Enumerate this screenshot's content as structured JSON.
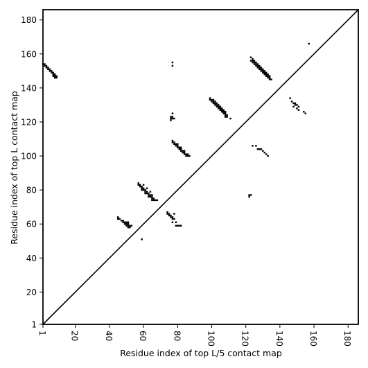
{
  "chart_data": {
    "type": "scatter",
    "title": "",
    "xlabel": "Residue index of top L/5 contact map",
    "ylabel": "Residue index of top L contact map",
    "xlim": [
      1,
      186
    ],
    "ylim": [
      1,
      186
    ],
    "x_ticks": [
      {
        "value": 1,
        "label": "1"
      },
      {
        "value": 20,
        "label": "20"
      },
      {
        "value": 40,
        "label": "40"
      },
      {
        "value": 60,
        "label": "60"
      },
      {
        "value": 80,
        "label": "80"
      },
      {
        "value": 100,
        "label": "100"
      },
      {
        "value": 120,
        "label": "120"
      },
      {
        "value": 140,
        "label": "140"
      },
      {
        "value": 160,
        "label": "160"
      },
      {
        "value": 180,
        "label": "180"
      }
    ],
    "y_ticks": [
      {
        "value": 1,
        "label": "1"
      },
      {
        "value": 20,
        "label": "20"
      },
      {
        "value": 40,
        "label": "40"
      },
      {
        "value": 60,
        "label": "60"
      },
      {
        "value": 80,
        "label": "80"
      },
      {
        "value": 100,
        "label": "100"
      },
      {
        "value": 120,
        "label": "120"
      },
      {
        "value": 140,
        "label": "140"
      },
      {
        "value": 160,
        "label": "160"
      },
      {
        "value": 180,
        "label": "180"
      }
    ],
    "diagonal": [
      [
        1,
        1
      ],
      [
        186,
        186
      ]
    ],
    "marker_color": "#000000",
    "grid": false,
    "series": [
      {
        "points": [
          [
            1,
            154
          ],
          [
            2,
            154
          ],
          [
            2,
            153
          ],
          [
            3,
            153
          ],
          [
            3,
            152
          ],
          [
            4,
            152
          ],
          [
            4,
            151
          ],
          [
            5,
            151
          ],
          [
            5,
            150
          ],
          [
            6,
            150
          ],
          [
            6,
            149
          ],
          [
            7,
            149
          ],
          [
            7,
            148
          ],
          [
            8,
            148
          ],
          [
            8,
            147
          ],
          [
            9,
            147
          ],
          [
            9,
            146
          ],
          [
            7,
            147
          ],
          [
            8,
            146
          ],
          [
            77,
            155
          ],
          [
            77,
            153
          ],
          [
            77,
            125
          ],
          [
            76,
            123
          ],
          [
            77,
            123
          ],
          [
            76,
            122
          ],
          [
            77,
            122
          ],
          [
            78,
            122
          ],
          [
            76,
            121
          ],
          [
            45,
            64
          ],
          [
            45,
            63
          ],
          [
            46,
            63
          ],
          [
            47,
            62
          ],
          [
            48,
            62
          ],
          [
            48,
            61
          ],
          [
            49,
            61
          ],
          [
            49,
            60
          ],
          [
            50,
            60
          ],
          [
            50,
            59
          ],
          [
            51,
            59
          ],
          [
            51,
            58
          ],
          [
            52,
            58
          ],
          [
            52,
            59
          ],
          [
            53,
            59
          ],
          [
            51,
            60
          ],
          [
            51,
            61
          ],
          [
            50,
            61
          ],
          [
            59,
            51
          ],
          [
            57,
            84
          ],
          [
            57,
            83
          ],
          [
            58,
            83
          ],
          [
            58,
            82
          ],
          [
            59,
            82
          ],
          [
            59,
            81
          ],
          [
            60,
            81
          ],
          [
            60,
            80
          ],
          [
            61,
            80
          ],
          [
            61,
            79
          ],
          [
            62,
            79
          ],
          [
            62,
            78
          ],
          [
            63,
            78
          ],
          [
            63,
            77
          ],
          [
            64,
            77
          ],
          [
            64,
            76
          ],
          [
            65,
            76
          ],
          [
            65,
            75
          ],
          [
            66,
            75
          ],
          [
            66,
            74
          ],
          [
            67,
            74
          ],
          [
            68,
            74
          ],
          [
            60,
            83
          ],
          [
            62,
            81
          ],
          [
            64,
            79
          ],
          [
            65,
            77
          ],
          [
            59,
            80
          ],
          [
            61,
            78
          ],
          [
            63,
            76
          ],
          [
            65,
            74
          ],
          [
            74,
            67
          ],
          [
            74,
            66
          ],
          [
            75,
            66
          ],
          [
            75,
            65
          ],
          [
            76,
            65
          ],
          [
            76,
            64
          ],
          [
            77,
            64
          ],
          [
            77,
            63
          ],
          [
            78,
            63
          ],
          [
            78,
            66
          ],
          [
            79,
            61
          ],
          [
            80,
            59
          ],
          [
            81,
            59
          ],
          [
            82,
            59
          ],
          [
            79,
            59
          ],
          [
            77,
            61
          ],
          [
            77,
            109
          ],
          [
            77,
            108
          ],
          [
            78,
            108
          ],
          [
            78,
            107
          ],
          [
            79,
            107
          ],
          [
            79,
            106
          ],
          [
            80,
            106
          ],
          [
            80,
            105
          ],
          [
            81,
            105
          ],
          [
            81,
            104
          ],
          [
            82,
            104
          ],
          [
            82,
            103
          ],
          [
            83,
            103
          ],
          [
            83,
            102
          ],
          [
            84,
            102
          ],
          [
            84,
            101
          ],
          [
            85,
            101
          ],
          [
            85,
            100
          ],
          [
            86,
            100
          ],
          [
            87,
            100
          ],
          [
            80,
            107
          ],
          [
            82,
            105
          ],
          [
            84,
            103
          ],
          [
            86,
            101
          ],
          [
            99,
            134
          ],
          [
            99,
            133
          ],
          [
            100,
            133
          ],
          [
            100,
            132
          ],
          [
            101,
            132
          ],
          [
            101,
            131
          ],
          [
            102,
            131
          ],
          [
            102,
            130
          ],
          [
            103,
            130
          ],
          [
            103,
            129
          ],
          [
            104,
            129
          ],
          [
            104,
            128
          ],
          [
            105,
            128
          ],
          [
            105,
            127
          ],
          [
            106,
            127
          ],
          [
            106,
            126
          ],
          [
            107,
            126
          ],
          [
            107,
            125
          ],
          [
            108,
            125
          ],
          [
            108,
            124
          ],
          [
            109,
            124
          ],
          [
            109,
            123
          ],
          [
            108,
            123
          ],
          [
            101,
            133
          ],
          [
            103,
            131
          ],
          [
            105,
            129
          ],
          [
            107,
            127
          ],
          [
            102,
            132
          ],
          [
            104,
            130
          ],
          [
            106,
            128
          ],
          [
            108,
            126
          ],
          [
            111,
            122
          ],
          [
            123,
            158
          ],
          [
            123,
            156
          ],
          [
            124,
            156
          ],
          [
            124,
            155
          ],
          [
            125,
            155
          ],
          [
            125,
            154
          ],
          [
            126,
            154
          ],
          [
            126,
            153
          ],
          [
            127,
            153
          ],
          [
            127,
            152
          ],
          [
            128,
            152
          ],
          [
            128,
            151
          ],
          [
            129,
            151
          ],
          [
            129,
            150
          ],
          [
            130,
            150
          ],
          [
            130,
            149
          ],
          [
            131,
            149
          ],
          [
            131,
            148
          ],
          [
            132,
            148
          ],
          [
            132,
            147
          ],
          [
            133,
            147
          ],
          [
            133,
            146
          ],
          [
            134,
            146
          ],
          [
            134,
            145
          ],
          [
            135,
            145
          ],
          [
            124,
            157
          ],
          [
            126,
            155
          ],
          [
            128,
            153
          ],
          [
            130,
            151
          ],
          [
            132,
            149
          ],
          [
            134,
            147
          ],
          [
            125,
            156
          ],
          [
            127,
            154
          ],
          [
            129,
            152
          ],
          [
            131,
            150
          ],
          [
            133,
            148
          ],
          [
            124,
            106
          ],
          [
            126,
            106
          ],
          [
            127,
            104
          ],
          [
            128,
            104
          ],
          [
            129,
            104
          ],
          [
            130,
            103
          ],
          [
            131,
            102
          ],
          [
            132,
            101
          ],
          [
            133,
            100
          ],
          [
            122,
            77
          ],
          [
            123,
            77
          ],
          [
            122,
            76
          ],
          [
            146,
            134
          ],
          [
            147,
            132
          ],
          [
            148,
            131
          ],
          [
            149,
            131
          ],
          [
            149,
            130
          ],
          [
            150,
            130
          ],
          [
            151,
            129
          ],
          [
            148,
            129
          ],
          [
            150,
            128
          ],
          [
            151,
            127
          ],
          [
            154,
            126
          ],
          [
            155,
            125
          ],
          [
            157,
            166
          ]
        ]
      }
    ]
  }
}
